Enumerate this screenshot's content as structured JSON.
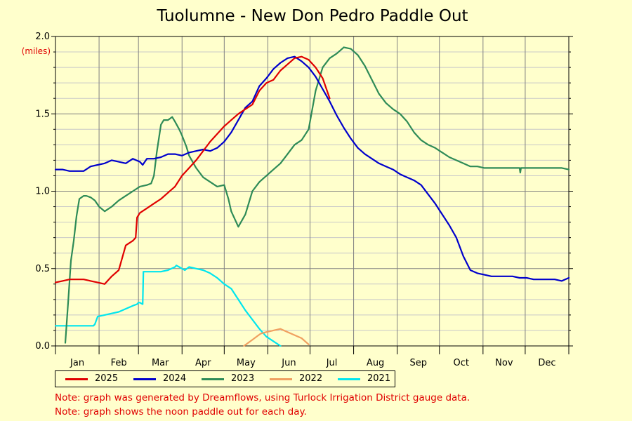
{
  "chart_data": {
    "type": "line",
    "title": "Tuolumne - New Don Pedro Paddle Out",
    "ylabel": "(miles)",
    "ylim": [
      0,
      2.0
    ],
    "yticks": [
      "0.0",
      "0.5",
      "1.0",
      "1.5",
      "2.0"
    ],
    "months": [
      "Jan",
      "Feb",
      "Mar",
      "Apr",
      "May",
      "Jun",
      "Jul",
      "Aug",
      "Sep",
      "Oct",
      "Nov",
      "Dec"
    ],
    "xlim": [
      0,
      365
    ],
    "grid": true,
    "legend_position": "bottom",
    "series": [
      {
        "name": "2025",
        "color": "#e00000",
        "x": [
          0,
          5,
          10,
          15,
          20,
          25,
          30,
          35,
          40,
          45,
          50,
          55,
          57,
          58,
          60,
          65,
          70,
          75,
          80,
          85,
          90,
          95,
          100,
          105,
          110,
          115,
          120,
          125,
          130,
          135,
          140,
          145,
          150,
          155,
          160,
          165,
          170,
          175,
          180,
          185,
          190,
          195
        ],
        "y": [
          0.41,
          0.42,
          0.43,
          0.43,
          0.43,
          0.42,
          0.41,
          0.4,
          0.45,
          0.49,
          0.65,
          0.68,
          0.7,
          0.83,
          0.86,
          0.89,
          0.92,
          0.95,
          0.99,
          1.03,
          1.1,
          1.15,
          1.2,
          1.26,
          1.32,
          1.37,
          1.42,
          1.46,
          1.5,
          1.53,
          1.56,
          1.65,
          1.7,
          1.72,
          1.78,
          1.82,
          1.86,
          1.87,
          1.85,
          1.8,
          1.73,
          1.6
        ]
      },
      {
        "name": "2024",
        "color": "#0000cc",
        "x": [
          0,
          5,
          10,
          15,
          20,
          25,
          30,
          35,
          40,
          45,
          50,
          55,
          60,
          62,
          65,
          70,
          75,
          80,
          85,
          90,
          95,
          100,
          105,
          110,
          115,
          120,
          125,
          130,
          135,
          140,
          145,
          150,
          155,
          160,
          165,
          170,
          175,
          180,
          185,
          190,
          195,
          200,
          205,
          210,
          215,
          220,
          225,
          230,
          235,
          240,
          245,
          250,
          255,
          260,
          265,
          270,
          275,
          280,
          285,
          290,
          295,
          300,
          305,
          310,
          315,
          320,
          325,
          330,
          335,
          340,
          345,
          350,
          355,
          360,
          365
        ],
        "y": [
          1.14,
          1.14,
          1.13,
          1.13,
          1.13,
          1.16,
          1.17,
          1.18,
          1.2,
          1.19,
          1.18,
          1.21,
          1.19,
          1.17,
          1.21,
          1.21,
          1.22,
          1.24,
          1.24,
          1.23,
          1.25,
          1.26,
          1.27,
          1.26,
          1.28,
          1.32,
          1.38,
          1.46,
          1.54,
          1.58,
          1.68,
          1.73,
          1.79,
          1.83,
          1.86,
          1.87,
          1.84,
          1.8,
          1.74,
          1.66,
          1.58,
          1.49,
          1.41,
          1.34,
          1.28,
          1.24,
          1.21,
          1.18,
          1.16,
          1.14,
          1.11,
          1.09,
          1.07,
          1.04,
          0.98,
          0.92,
          0.85,
          0.78,
          0.7,
          0.58,
          0.49,
          0.47,
          0.46,
          0.45,
          0.45,
          0.45,
          0.45,
          0.44,
          0.44,
          0.43,
          0.43,
          0.43,
          0.43,
          0.42,
          0.44
        ]
      },
      {
        "name": "2023",
        "color": "#2e8b57",
        "x": [
          7,
          9,
          11,
          13,
          15,
          17,
          20,
          22,
          25,
          28,
          31,
          35,
          40,
          45,
          50,
          55,
          60,
          65,
          68,
          70,
          72,
          75,
          77,
          80,
          83,
          85,
          88,
          90,
          93,
          95,
          100,
          105,
          110,
          115,
          120,
          123,
          125,
          130,
          135,
          140,
          145,
          150,
          155,
          160,
          165,
          170,
          175,
          180,
          185,
          190,
          195,
          200,
          205,
          210,
          215,
          220,
          225,
          230,
          235,
          240,
          245,
          250,
          255,
          260,
          265,
          270,
          275,
          280,
          285,
          290,
          295,
          300,
          305,
          310,
          315,
          320,
          325,
          330,
          330.5,
          331,
          335,
          340,
          345,
          350,
          355,
          360,
          365
        ],
        "y": [
          0.02,
          0.28,
          0.55,
          0.68,
          0.84,
          0.95,
          0.97,
          0.97,
          0.96,
          0.94,
          0.9,
          0.87,
          0.9,
          0.94,
          0.97,
          1.0,
          1.03,
          1.04,
          1.05,
          1.1,
          1.25,
          1.43,
          1.46,
          1.46,
          1.48,
          1.45,
          1.4,
          1.36,
          1.29,
          1.23,
          1.15,
          1.09,
          1.06,
          1.03,
          1.04,
          0.95,
          0.87,
          0.77,
          0.85,
          1.0,
          1.06,
          1.1,
          1.14,
          1.18,
          1.24,
          1.3,
          1.33,
          1.4,
          1.65,
          1.8,
          1.86,
          1.89,
          1.93,
          1.92,
          1.88,
          1.81,
          1.72,
          1.63,
          1.57,
          1.53,
          1.5,
          1.45,
          1.38,
          1.33,
          1.3,
          1.28,
          1.25,
          1.22,
          1.2,
          1.18,
          1.16,
          1.16,
          1.15,
          1.15,
          1.15,
          1.15,
          1.15,
          1.15,
          1.12,
          1.15,
          1.15,
          1.15,
          1.15,
          1.15,
          1.15,
          1.15,
          1.14
        ]
      },
      {
        "name": "2022",
        "color": "#f0a060",
        "x": [
          134,
          137,
          140,
          143,
          146,
          150,
          155,
          160,
          165,
          170,
          175,
          180
        ],
        "y": [
          0.0,
          0.02,
          0.04,
          0.06,
          0.08,
          0.09,
          0.1,
          0.11,
          0.09,
          0.07,
          0.05,
          0.01
        ]
      },
      {
        "name": "2021",
        "color": "#00e5ee",
        "x": [
          0,
          5,
          10,
          15,
          20,
          25,
          27,
          28,
          30,
          35,
          40,
          45,
          50,
          55,
          58,
          59,
          60,
          62,
          62.5,
          65,
          70,
          75,
          80,
          85,
          86,
          88,
          90,
          92,
          95,
          100,
          105,
          110,
          115,
          120,
          125,
          130,
          135,
          140,
          145,
          150,
          155,
          160
        ],
        "y": [
          0.13,
          0.13,
          0.13,
          0.13,
          0.13,
          0.13,
          0.13,
          0.14,
          0.19,
          0.2,
          0.21,
          0.22,
          0.24,
          0.26,
          0.27,
          0.28,
          0.28,
          0.27,
          0.48,
          0.48,
          0.48,
          0.48,
          0.49,
          0.51,
          0.52,
          0.51,
          0.5,
          0.49,
          0.51,
          0.5,
          0.49,
          0.47,
          0.44,
          0.4,
          0.37,
          0.3,
          0.23,
          0.17,
          0.11,
          0.06,
          0.03,
          0.0
        ]
      }
    ]
  },
  "notes": [
    "Note: graph was generated by Dreamflows, using Turlock Irrigation District gauge data.",
    "Note: graph shows the noon paddle out for each day."
  ]
}
